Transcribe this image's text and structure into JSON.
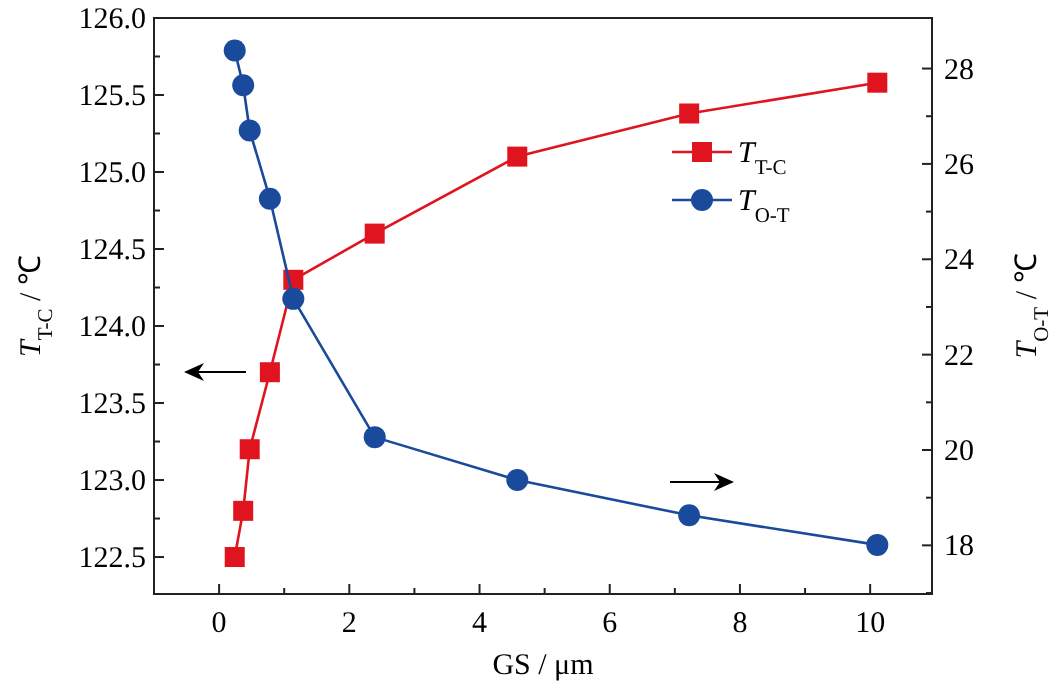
{
  "chart_data": {
    "type": "line",
    "xlabel": "GS / μm",
    "ylabel": "T$_{T-C}$ / ℃",
    "y2label": "T$_{O-T}$ / ℃",
    "xlim": [
      -1,
      10.95
    ],
    "xticks": [
      0,
      {
        "value": 1,
        "label": null
      },
      2,
      {
        "value": 3,
        "label": null
      },
      4,
      {
        "value": 5,
        "label": null
      },
      6,
      {
        "value": 7,
        "label": null
      },
      8,
      {
        "value": 9,
        "label": null
      },
      10
    ],
    "ylim": [
      122.26,
      126.0
    ],
    "yticks": [
      {
        "value": 122.5,
        "label": "122.5"
      },
      {
        "value": 122.75,
        "label": null
      },
      {
        "value": 123,
        "label": "123.0"
      },
      {
        "value": 123.25,
        "label": null
      },
      {
        "value": 123.5,
        "label": "123.5"
      },
      {
        "value": 123.75,
        "label": null
      },
      {
        "value": 124,
        "label": "124.0"
      },
      {
        "value": 124.25,
        "label": null
      },
      {
        "value": 124.5,
        "label": "124.5"
      },
      {
        "value": 124.75,
        "label": null
      },
      {
        "value": 125,
        "label": "125.0"
      },
      {
        "value": 125.25,
        "label": null
      },
      {
        "value": 125.5,
        "label": "125.5"
      },
      {
        "value": 125.75,
        "label": null
      },
      {
        "value": 126,
        "label": "126.0"
      }
    ],
    "y2lim": [
      16.98,
      29.06
    ],
    "y2ticks": [
      {
        "value": 17,
        "label": null
      },
      18,
      {
        "value": 19,
        "label": null
      },
      20,
      {
        "value": 21,
        "label": null
      },
      22,
      {
        "value": 23,
        "label": null
      },
      24,
      {
        "value": 25,
        "label": null
      },
      26,
      {
        "value": 27,
        "label": null
      },
      28
    ],
    "legend": "top right",
    "grid": false,
    "line_style": "solid",
    "x": [
      0.24,
      0.37,
      0.47,
      0.78,
      1.14,
      2.39,
      4.58,
      7.22,
      10.11
    ],
    "series": [
      {
        "name": "T$_{T-C}$",
        "color": "#e0141e",
        "marker": "square",
        "values": [
          122.5,
          122.8,
          123.2,
          123.7,
          124.3,
          124.6,
          125.1,
          125.38,
          125.58
        ]
      },
      {
        "name": "T$_{O-T}$",
        "color": "#1a4a9c",
        "marker": "circle",
        "axis": "y2",
        "values": [
          28.38,
          27.65,
          26.7,
          25.27,
          23.17,
          20.27,
          19.37,
          18.63,
          18.01
        ]
      }
    ]
  }
}
